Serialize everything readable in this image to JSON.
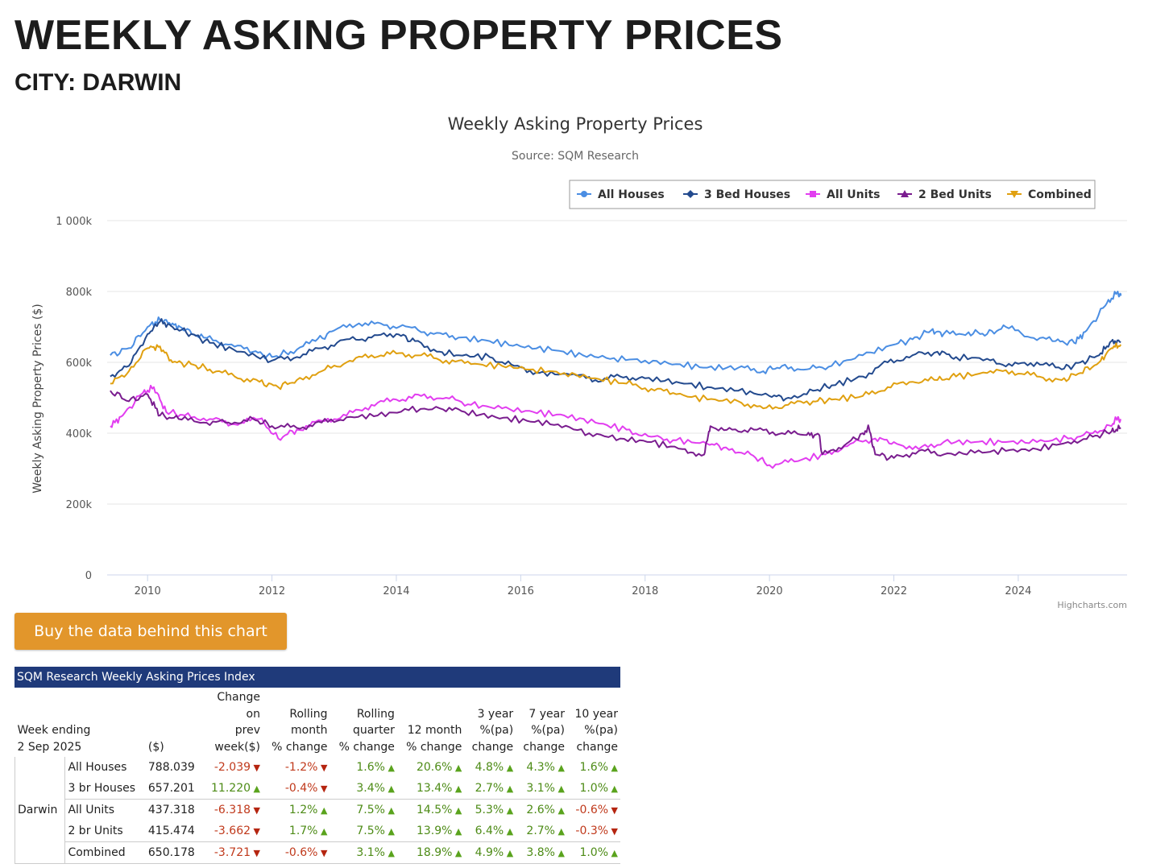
{
  "page": {
    "title": "WEEKLY ASKING PROPERTY PRICES",
    "subtitle": "CITY: DARWIN"
  },
  "buy_button_label": "Buy the data behind this chart",
  "colors": {
    "all_houses": "#4b8ee3",
    "three_bed_houses": "#234a8e",
    "all_units": "#e23ef0",
    "two_bed_units": "#7a1d8f",
    "combined": "#e0a010",
    "table_header": "#1f3a7a",
    "button": "#e2962b",
    "up": "#5aa31d",
    "down": "#b52510"
  },
  "chart_data": {
    "type": "line",
    "title": "Weekly Asking Property Prices",
    "subtitle": "Source: SQM Research",
    "ylabel": "Weekly Asking Property Prices ($)",
    "xlabel": "",
    "credit": "Highcharts.com",
    "ylim": [
      0,
      1000000
    ],
    "yticks": [
      0,
      200000,
      400000,
      600000,
      800000,
      1000000
    ],
    "ytick_labels": [
      "0",
      "200k",
      "400k",
      "600k",
      "800k",
      "1 000k"
    ],
    "xlim": [
      2009.35,
      2025.75
    ],
    "xticks": [
      2010,
      2012,
      2014,
      2016,
      2018,
      2020,
      2022,
      2024
    ],
    "xtick_labels": [
      "2010",
      "2012",
      "2014",
      "2016",
      "2018",
      "2020",
      "2022",
      "2024"
    ],
    "legend_position": "top-right",
    "series": [
      {
        "name": "All Houses",
        "key": "all_houses",
        "marker": "circle",
        "points": [
          [
            2009.4,
            620000
          ],
          [
            2009.7,
            640000
          ],
          [
            2010.0,
            700000
          ],
          [
            2010.2,
            720000
          ],
          [
            2010.4,
            710000
          ],
          [
            2010.6,
            690000
          ],
          [
            2010.9,
            670000
          ],
          [
            2011.3,
            650000
          ],
          [
            2011.7,
            630000
          ],
          [
            2012.0,
            615000
          ],
          [
            2012.3,
            630000
          ],
          [
            2012.7,
            660000
          ],
          [
            2013.0,
            690000
          ],
          [
            2013.4,
            710000
          ],
          [
            2013.8,
            705000
          ],
          [
            2014.2,
            700000
          ],
          [
            2014.6,
            680000
          ],
          [
            2015.0,
            670000
          ],
          [
            2015.5,
            660000
          ],
          [
            2016.0,
            645000
          ],
          [
            2016.5,
            635000
          ],
          [
            2017.0,
            620000
          ],
          [
            2017.5,
            612000
          ],
          [
            2018.0,
            605000
          ],
          [
            2018.5,
            595000
          ],
          [
            2019.0,
            585000
          ],
          [
            2019.5,
            585000
          ],
          [
            2019.9,
            575000
          ],
          [
            2020.2,
            590000
          ],
          [
            2020.6,
            580000
          ],
          [
            2021.0,
            590000
          ],
          [
            2021.5,
            620000
          ],
          [
            2022.0,
            650000
          ],
          [
            2022.3,
            665000
          ],
          [
            2022.6,
            690000
          ],
          [
            2022.8,
            680000
          ],
          [
            2023.2,
            685000
          ],
          [
            2023.5,
            680000
          ],
          [
            2023.8,
            700000
          ],
          [
            2024.2,
            670000
          ],
          [
            2024.6,
            660000
          ],
          [
            2024.9,
            655000
          ],
          [
            2025.1,
            690000
          ],
          [
            2025.4,
            760000
          ],
          [
            2025.6,
            800000
          ],
          [
            2025.65,
            788000
          ]
        ]
      },
      {
        "name": "3 Bed Houses",
        "key": "three_bed_houses",
        "marker": "diamond",
        "points": [
          [
            2009.4,
            560000
          ],
          [
            2009.7,
            590000
          ],
          [
            2010.0,
            680000
          ],
          [
            2010.2,
            715000
          ],
          [
            2010.4,
            700000
          ],
          [
            2010.7,
            680000
          ],
          [
            2011.0,
            655000
          ],
          [
            2011.5,
            630000
          ],
          [
            2012.0,
            605000
          ],
          [
            2012.4,
            615000
          ],
          [
            2012.8,
            640000
          ],
          [
            2013.2,
            665000
          ],
          [
            2013.6,
            670000
          ],
          [
            2014.0,
            680000
          ],
          [
            2014.3,
            660000
          ],
          [
            2014.7,
            630000
          ],
          [
            2015.0,
            620000
          ],
          [
            2015.5,
            615000
          ],
          [
            2015.9,
            590000
          ],
          [
            2016.3,
            570000
          ],
          [
            2016.8,
            565000
          ],
          [
            2017.2,
            550000
          ],
          [
            2017.6,
            560000
          ],
          [
            2018.0,
            555000
          ],
          [
            2018.5,
            545000
          ],
          [
            2019.0,
            530000
          ],
          [
            2019.5,
            520000
          ],
          [
            2020.0,
            505000
          ],
          [
            2020.3,
            500000
          ],
          [
            2020.7,
            520000
          ],
          [
            2021.0,
            535000
          ],
          [
            2021.5,
            560000
          ],
          [
            2021.9,
            600000
          ],
          [
            2022.3,
            620000
          ],
          [
            2022.7,
            630000
          ],
          [
            2023.0,
            615000
          ],
          [
            2023.5,
            610000
          ],
          [
            2023.9,
            590000
          ],
          [
            2024.3,
            600000
          ],
          [
            2024.7,
            580000
          ],
          [
            2025.0,
            600000
          ],
          [
            2025.3,
            620000
          ],
          [
            2025.5,
            660000
          ],
          [
            2025.65,
            657000
          ]
        ]
      },
      {
        "name": "All Units",
        "key": "all_units",
        "marker": "square",
        "points": [
          [
            2009.4,
            420000
          ],
          [
            2009.6,
            450000
          ],
          [
            2009.9,
            510000
          ],
          [
            2010.1,
            530000
          ],
          [
            2010.3,
            460000
          ],
          [
            2010.6,
            450000
          ],
          [
            2011.0,
            440000
          ],
          [
            2011.4,
            425000
          ],
          [
            2011.8,
            440000
          ],
          [
            2012.1,
            385000
          ],
          [
            2012.4,
            410000
          ],
          [
            2012.8,
            435000
          ],
          [
            2013.2,
            450000
          ],
          [
            2013.6,
            480000
          ],
          [
            2014.0,
            495000
          ],
          [
            2014.4,
            505000
          ],
          [
            2014.8,
            500000
          ],
          [
            2015.2,
            480000
          ],
          [
            2015.7,
            470000
          ],
          [
            2016.2,
            460000
          ],
          [
            2016.7,
            450000
          ],
          [
            2017.2,
            430000
          ],
          [
            2017.7,
            410000
          ],
          [
            2018.1,
            390000
          ],
          [
            2018.5,
            380000
          ],
          [
            2019.0,
            370000
          ],
          [
            2019.3,
            360000
          ],
          [
            2019.7,
            340000
          ],
          [
            2020.0,
            310000
          ],
          [
            2020.4,
            320000
          ],
          [
            2020.9,
            340000
          ],
          [
            2021.3,
            370000
          ],
          [
            2021.7,
            385000
          ],
          [
            2022.0,
            375000
          ],
          [
            2022.4,
            355000
          ],
          [
            2022.8,
            375000
          ],
          [
            2023.3,
            375000
          ],
          [
            2023.8,
            375000
          ],
          [
            2024.3,
            375000
          ],
          [
            2024.8,
            385000
          ],
          [
            2025.2,
            400000
          ],
          [
            2025.5,
            420000
          ],
          [
            2025.6,
            445000
          ],
          [
            2025.65,
            437000
          ]
        ]
      },
      {
        "name": "2 Bed Units",
        "key": "two_bed_units",
        "marker": "triangle",
        "points": [
          [
            2009.4,
            520000
          ],
          [
            2009.7,
            490000
          ],
          [
            2010.0,
            510000
          ],
          [
            2010.2,
            450000
          ],
          [
            2010.5,
            440000
          ],
          [
            2010.9,
            430000
          ],
          [
            2011.3,
            430000
          ],
          [
            2011.7,
            440000
          ],
          [
            2012.0,
            420000
          ],
          [
            2012.4,
            415000
          ],
          [
            2012.8,
            430000
          ],
          [
            2013.2,
            445000
          ],
          [
            2013.7,
            450000
          ],
          [
            2014.2,
            465000
          ],
          [
            2014.7,
            470000
          ],
          [
            2015.1,
            460000
          ],
          [
            2015.6,
            445000
          ],
          [
            2016.1,
            435000
          ],
          [
            2016.6,
            425000
          ],
          [
            2017.1,
            400000
          ],
          [
            2017.6,
            385000
          ],
          [
            2018.1,
            375000
          ],
          [
            2018.6,
            355000
          ],
          [
            2018.95,
            340000
          ],
          [
            2019.05,
            420000
          ],
          [
            2019.4,
            410000
          ],
          [
            2019.8,
            410000
          ],
          [
            2020.2,
            400000
          ],
          [
            2020.6,
            395000
          ],
          [
            2020.8,
            395000
          ],
          [
            2020.85,
            340000
          ],
          [
            2021.2,
            365000
          ],
          [
            2021.5,
            400000
          ],
          [
            2021.6,
            415000
          ],
          [
            2021.7,
            340000
          ],
          [
            2022.0,
            330000
          ],
          [
            2022.4,
            350000
          ],
          [
            2022.8,
            340000
          ],
          [
            2023.3,
            345000
          ],
          [
            2023.8,
            350000
          ],
          [
            2024.3,
            355000
          ],
          [
            2024.8,
            375000
          ],
          [
            2025.2,
            390000
          ],
          [
            2025.5,
            405000
          ],
          [
            2025.65,
            415000
          ]
        ]
      },
      {
        "name": "Combined",
        "key": "combined",
        "marker": "triangle-down",
        "points": [
          [
            2009.4,
            540000
          ],
          [
            2009.7,
            575000
          ],
          [
            2010.0,
            640000
          ],
          [
            2010.2,
            645000
          ],
          [
            2010.4,
            600000
          ],
          [
            2010.7,
            595000
          ],
          [
            2011.0,
            580000
          ],
          [
            2011.4,
            560000
          ],
          [
            2011.8,
            545000
          ],
          [
            2012.1,
            530000
          ],
          [
            2012.4,
            550000
          ],
          [
            2012.8,
            575000
          ],
          [
            2013.2,
            600000
          ],
          [
            2013.6,
            620000
          ],
          [
            2014.0,
            625000
          ],
          [
            2014.4,
            620000
          ],
          [
            2014.8,
            605000
          ],
          [
            2015.2,
            595000
          ],
          [
            2015.7,
            590000
          ],
          [
            2016.2,
            580000
          ],
          [
            2016.7,
            570000
          ],
          [
            2017.2,
            555000
          ],
          [
            2017.7,
            540000
          ],
          [
            2018.1,
            525000
          ],
          [
            2018.5,
            510000
          ],
          [
            2019.0,
            495000
          ],
          [
            2019.5,
            490000
          ],
          [
            2019.9,
            470000
          ],
          [
            2020.3,
            480000
          ],
          [
            2020.7,
            490000
          ],
          [
            2021.0,
            495000
          ],
          [
            2021.5,
            505000
          ],
          [
            2021.9,
            530000
          ],
          [
            2022.3,
            545000
          ],
          [
            2022.7,
            550000
          ],
          [
            2023.0,
            560000
          ],
          [
            2023.5,
            570000
          ],
          [
            2023.9,
            575000
          ],
          [
            2024.3,
            560000
          ],
          [
            2024.7,
            550000
          ],
          [
            2025.0,
            570000
          ],
          [
            2025.3,
            600000
          ],
          [
            2025.5,
            640000
          ],
          [
            2025.65,
            650000
          ]
        ]
      }
    ]
  },
  "table": {
    "caption": "SQM Research Weekly Asking Prices Index",
    "headers": {
      "week_ending_1": "Week ending",
      "week_ending_2": "2 Sep 2025",
      "dollar": "($)",
      "change_prev_1": "Change",
      "change_prev_2": "on",
      "change_prev_3": "prev",
      "change_prev_4": "week($)",
      "rolling_month_1": "Rolling",
      "rolling_month_2": "month",
      "rolling_month_3": "% change",
      "rolling_quarter_1": "Rolling",
      "rolling_quarter_2": "quarter",
      "rolling_quarter_3": "% change",
      "twelve_month_1": "12 month",
      "twelve_month_2": "% change",
      "three_year_1": "3 year",
      "three_year_2": "%(pa)",
      "three_year_3": "change",
      "seven_year_1": "7 year",
      "seven_year_2": "%(pa)",
      "seven_year_3": "change",
      "ten_year_1": "10 year",
      "ten_year_2": "%(pa)",
      "ten_year_3": "change"
    },
    "region": "Darwin",
    "rows": [
      {
        "type": "All Houses",
        "value": "788.039",
        "cells": [
          "-2.039",
          "-1.2%",
          "1.6%",
          "20.6%",
          "4.8%",
          "4.3%",
          "1.6%"
        ]
      },
      {
        "type": "3 br Houses",
        "value": "657.201",
        "cells": [
          "11.220",
          "-0.4%",
          "3.4%",
          "13.4%",
          "2.7%",
          "3.1%",
          "1.0%"
        ]
      },
      {
        "type": "All Units",
        "value": "437.318",
        "cells": [
          "-6.318",
          "1.2%",
          "7.5%",
          "14.5%",
          "5.3%",
          "2.6%",
          "-0.6%"
        ]
      },
      {
        "type": "2 br Units",
        "value": "415.474",
        "cells": [
          "-3.662",
          "1.7%",
          "7.5%",
          "13.9%",
          "6.4%",
          "2.7%",
          "-0.3%"
        ]
      },
      {
        "type": "Combined",
        "value": "650.178",
        "cells": [
          "-3.721",
          "-0.6%",
          "3.1%",
          "18.9%",
          "4.9%",
          "3.8%",
          "1.0%"
        ]
      }
    ]
  }
}
